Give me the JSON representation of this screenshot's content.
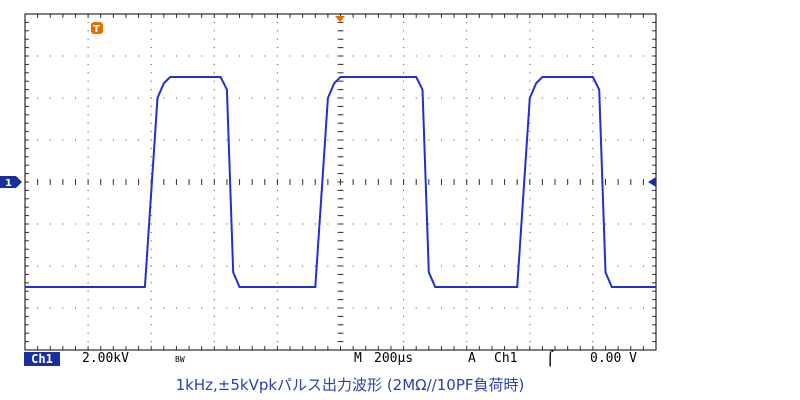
{
  "oscilloscope": {
    "channel_marker": "1",
    "trigger_marker": "T",
    "status_bar": {
      "channel": "Ch1",
      "volts_per_div": "2.00kV",
      "bw_limit": "BW",
      "time_label": "M",
      "time_per_div": "200µs",
      "trigger_mode": "A",
      "trigger_source": "Ch1",
      "trigger_level": "0.00 V"
    },
    "colors": {
      "trace": "#1f2fd0",
      "markers": "#1b2ea0",
      "trigger": "#e07000"
    }
  },
  "caption": "1kHz,±5kVpkパルス出力波形 (2MΩ//10PF負荷時)",
  "chart_data": {
    "type": "line",
    "xlabel": "",
    "ylabel": "",
    "x_unit": "µs",
    "y_unit": "kV",
    "xlim": [
      -1000,
      1000
    ],
    "ylim": [
      -8,
      8
    ],
    "series": [
      {
        "name": "",
        "x": [
          -1000,
          -620,
          -580,
          -560,
          -540,
          -380,
          -360,
          -340,
          -320,
          -80,
          -40,
          -20,
          0,
          240,
          260,
          280,
          300,
          560,
          600,
          620,
          640,
          800,
          820,
          840,
          860,
          1000
        ],
        "y": [
          -5.0,
          -5.0,
          4.0,
          4.7,
          5.0,
          5.0,
          4.4,
          -4.3,
          -5.0,
          -5.0,
          4.0,
          4.7,
          5.0,
          5.0,
          4.4,
          -4.3,
          -5.0,
          -5.0,
          4.0,
          4.7,
          5.0,
          5.0,
          4.4,
          -4.3,
          -5.0,
          -5.0
        ]
      }
    ]
  }
}
